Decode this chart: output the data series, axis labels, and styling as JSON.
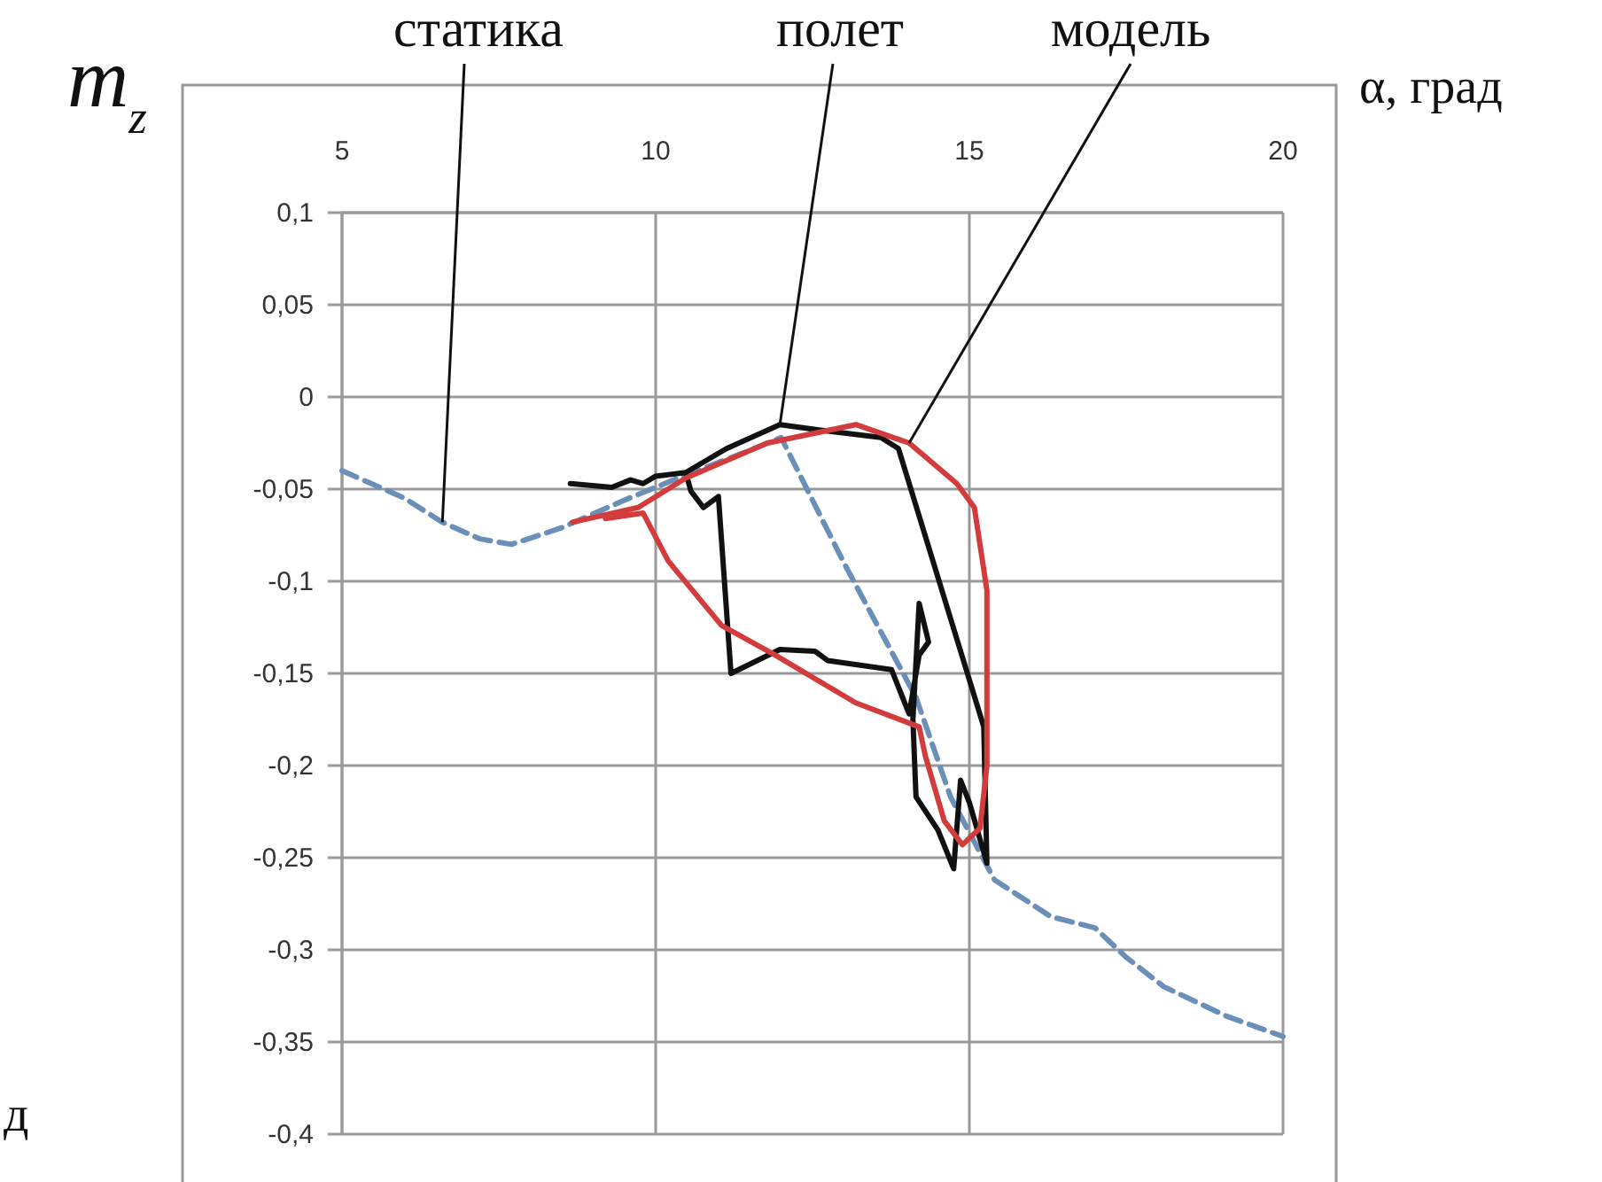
{
  "chart_data": {
    "type": "line",
    "xlabel": "α, град",
    "ylabel": "m$_{z}$",
    "xlim": [
      5,
      20
    ],
    "xticks": [
      5,
      10,
      15,
      20
    ],
    "ylim": [
      -0.4,
      0.1
    ],
    "yticks": [
      {
        "value": 0.1,
        "label": "0,1"
      },
      {
        "value": 0.05,
        "label": "0,05"
      },
      0,
      {
        "value": -0.05,
        "label": "-0,05"
      },
      {
        "value": -0.1,
        "label": "-0,1"
      },
      {
        "value": -0.15,
        "label": "-0,15"
      },
      {
        "value": -0.2,
        "label": "-0,2"
      },
      {
        "value": -0.25,
        "label": "-0,25"
      },
      {
        "value": -0.3,
        "label": "-0,3"
      },
      {
        "value": -0.35,
        "label": "-0,35"
      },
      {
        "value": -0.4,
        "label": "-0,4"
      }
    ],
    "grid": true,
    "annotations": [
      "д"
    ],
    "series": [
      {
        "name": "статика",
        "color": "#6a8fb8",
        "line_style": "dashed",
        "x": [
          5,
          6,
          6.6,
          7.2,
          7.7,
          8.5,
          9.5,
          10.5,
          11.5,
          12,
          13,
          14.15,
          14.7,
          15.4,
          16.3,
          17,
          17.5,
          18.1,
          19.1,
          20
        ],
        "values": [
          -0.04,
          -0.055,
          -0.068,
          -0.077,
          -0.08,
          -0.071,
          -0.056,
          -0.042,
          -0.029,
          -0.022,
          -0.09,
          -0.163,
          -0.217,
          -0.262,
          -0.282,
          -0.288,
          -0.304,
          -0.32,
          -0.336,
          -0.347
        ]
      },
      {
        "name": "полет",
        "color": "#111111",
        "line_style": "solid",
        "x": [
          8.64,
          9.3,
          9.6,
          9.8,
          10.0,
          10.48,
          11.13,
          11.98,
          12.63,
          13.59,
          13.87,
          15.23,
          15.28,
          15.0,
          14.86,
          14.75,
          14.5,
          14.15,
          14.1,
          14.2,
          14.35,
          14.2,
          14.04,
          13.76,
          12.74,
          12.54,
          11.98,
          11.2,
          11.0,
          10.76,
          10.56,
          10.48
        ],
        "values": [
          -0.047,
          -0.049,
          -0.045,
          -0.047,
          -0.043,
          -0.041,
          -0.028,
          -0.015,
          -0.018,
          -0.022,
          -0.028,
          -0.179,
          -0.253,
          -0.22,
          -0.208,
          -0.256,
          -0.235,
          -0.217,
          -0.175,
          -0.112,
          -0.133,
          -0.14,
          -0.172,
          -0.148,
          -0.143,
          -0.138,
          -0.137,
          -0.15,
          -0.054,
          -0.06,
          -0.051,
          -0.041
        ]
      },
      {
        "name": "модель",
        "color": "#d23c3c",
        "line_style": "solid",
        "x": [
          8.67,
          9.72,
          10.48,
          11.78,
          13.19,
          14.04,
          14.8,
          15.08,
          15.28,
          15.28,
          15.17,
          14.89,
          14.6,
          14.3,
          14.2,
          13.19,
          11.9,
          11.05,
          10.2,
          9.8,
          9.2
        ],
        "values": [
          -0.068,
          -0.06,
          -0.044,
          -0.025,
          -0.015,
          -0.025,
          -0.047,
          -0.06,
          -0.105,
          -0.2,
          -0.234,
          -0.243,
          -0.23,
          -0.195,
          -0.179,
          -0.166,
          -0.14,
          -0.124,
          -0.089,
          -0.063,
          -0.066
        ]
      }
    ]
  }
}
